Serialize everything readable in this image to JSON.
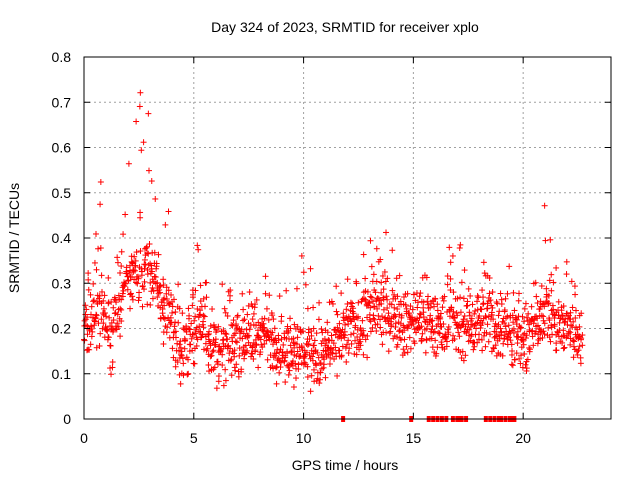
{
  "chart_data": {
    "type": "scatter",
    "title": "Day 324 of 2023, SRMTID for receiver xplo",
    "xlabel": "GPS time / hours",
    "ylabel": "SRMTID / TECUs",
    "xlim": [
      0,
      24
    ],
    "ylim": [
      0,
      0.8
    ],
    "xticks": [
      "0",
      "5",
      "10",
      "15",
      "20"
    ],
    "xtick_values": [
      0,
      5,
      10,
      15,
      20
    ],
    "yticks": [
      "0",
      "0.1",
      "0.2",
      "0.3",
      "0.4",
      "0.5",
      "0.6",
      "0.7",
      "0.8"
    ],
    "ytick_values": [
      0,
      0.1,
      0.2,
      0.3,
      0.4,
      0.5,
      0.6,
      0.7,
      0.8
    ],
    "grid": true,
    "marker": "+",
    "color": "#ff0000",
    "series": [
      {
        "name": "SRMTID",
        "envelope": [
          {
            "t": 0.0,
            "base": 0.2,
            "max": 0.3
          },
          {
            "t": 0.5,
            "base": 0.22,
            "max": 0.37
          },
          {
            "t": 0.8,
            "base": 0.24,
            "max": 0.6
          },
          {
            "t": 1.2,
            "base": 0.16,
            "max": 0.3
          },
          {
            "t": 1.7,
            "base": 0.28,
            "max": 0.5
          },
          {
            "t": 2.4,
            "base": 0.32,
            "max": 0.74
          },
          {
            "t": 2.9,
            "base": 0.34,
            "max": 0.72
          },
          {
            "t": 3.4,
            "base": 0.28,
            "max": 0.43
          },
          {
            "t": 3.8,
            "base": 0.22,
            "max": 0.5
          },
          {
            "t": 4.5,
            "base": 0.16,
            "max": 0.3
          },
          {
            "t": 5.3,
            "base": 0.22,
            "max": 0.44
          },
          {
            "t": 6.0,
            "base": 0.14,
            "max": 0.34
          },
          {
            "t": 7.0,
            "base": 0.17,
            "max": 0.27
          },
          {
            "t": 8.0,
            "base": 0.19,
            "max": 0.33
          },
          {
            "t": 9.0,
            "base": 0.16,
            "max": 0.29
          },
          {
            "t": 10.0,
            "base": 0.15,
            "max": 0.38
          },
          {
            "t": 10.8,
            "base": 0.13,
            "max": 0.3
          },
          {
            "t": 11.5,
            "base": 0.17,
            "max": 0.3
          },
          {
            "t": 12.5,
            "base": 0.2,
            "max": 0.33
          },
          {
            "t": 13.0,
            "base": 0.23,
            "max": 0.41
          },
          {
            "t": 13.5,
            "base": 0.25,
            "max": 0.44
          },
          {
            "t": 14.2,
            "base": 0.23,
            "max": 0.37
          },
          {
            "t": 14.7,
            "base": 0.2,
            "max": 0.3
          },
          {
            "t": 15.3,
            "base": 0.22,
            "max": 0.33
          },
          {
            "t": 16.0,
            "base": 0.2,
            "max": 0.3
          },
          {
            "t": 17.0,
            "base": 0.21,
            "max": 0.43
          },
          {
            "t": 17.6,
            "base": 0.19,
            "max": 0.28
          },
          {
            "t": 18.2,
            "base": 0.22,
            "max": 0.37
          },
          {
            "t": 18.8,
            "base": 0.2,
            "max": 0.28
          },
          {
            "t": 19.2,
            "base": 0.21,
            "max": 0.41
          },
          {
            "t": 20.0,
            "base": 0.15,
            "max": 0.25
          },
          {
            "t": 20.7,
            "base": 0.22,
            "max": 0.35
          },
          {
            "t": 21.0,
            "base": 0.25,
            "max": 0.49
          },
          {
            "t": 21.6,
            "base": 0.2,
            "max": 0.3
          },
          {
            "t": 22.1,
            "base": 0.21,
            "max": 0.37
          },
          {
            "t": 22.7,
            "base": 0.17,
            "max": 0.27
          }
        ],
        "zero_hours": [
          11.8,
          14.9,
          15.7,
          15.9,
          16.1,
          16.3,
          16.5,
          16.8,
          17.0,
          17.1,
          17.2,
          17.4,
          18.3,
          18.5,
          18.7,
          18.9,
          19.0,
          19.2,
          19.4,
          19.5,
          19.6
        ]
      }
    ]
  }
}
